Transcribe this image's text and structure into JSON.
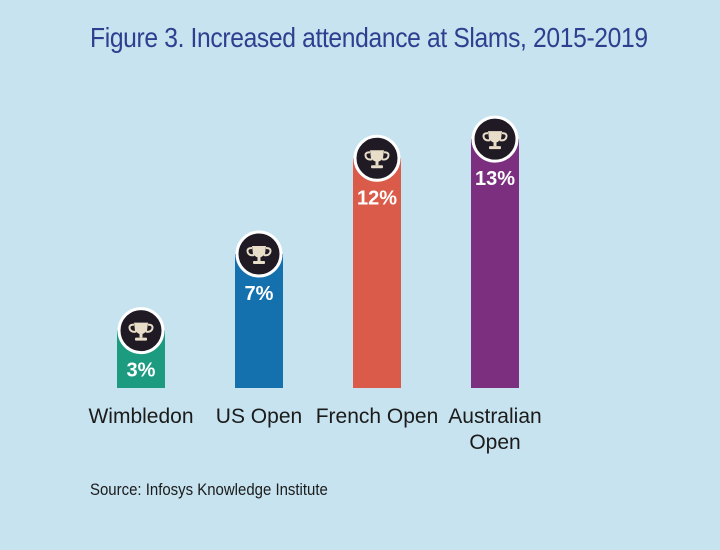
{
  "page": {
    "title": "Figure 3. Increased attendance at Slams, 2015-2019",
    "source": "Source: Infosys Knowledge Institute"
  },
  "colors": {
    "background": "#c6e3ef",
    "title": "#2e3f8f",
    "icon_badge": "#1f1a24",
    "icon_trophy": "#e8ddc8"
  },
  "chart_data": {
    "type": "bar",
    "title": "Figure 3. Increased attendance at Slams, 2015-2019",
    "xlabel": "",
    "ylabel": "",
    "categories": [
      "Wimbledon",
      "US Open",
      "French Open",
      "Australian Open"
    ],
    "category_lines": [
      [
        "Wimbledon"
      ],
      [
        "US Open"
      ],
      [
        "French Open"
      ],
      [
        "Australian",
        "Open"
      ]
    ],
    "values": [
      3,
      7,
      12,
      13
    ],
    "value_labels": [
      "3%",
      "7%",
      "12%",
      "13%"
    ],
    "bar_colors": [
      "#1c9b80",
      "#1571ad",
      "#db5b4a",
      "#7c2f7f"
    ],
    "icons": [
      "trophy-icon",
      "trophy-icon",
      "trophy-icon",
      "trophy-icon"
    ],
    "ylim": [
      0,
      14
    ],
    "grid": false,
    "legend": "none"
  }
}
